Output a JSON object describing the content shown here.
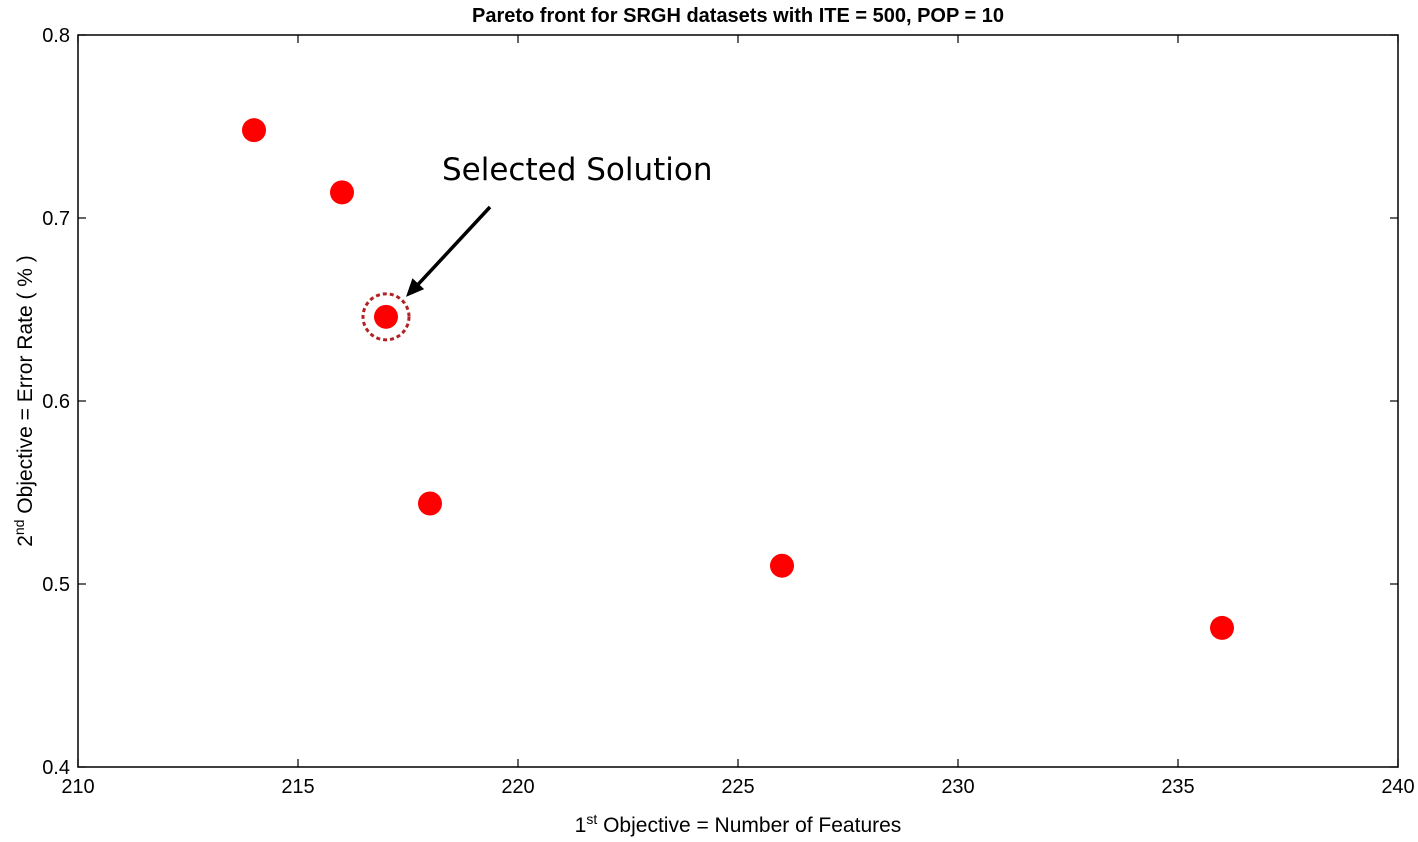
{
  "chart_data": {
    "type": "scatter",
    "title": "Pareto front for SRGH datasets with ITE = 500, POP = 10",
    "xlabel": {
      "sup": "st",
      "prefix": "1",
      "rest": " Objective = Number of Features"
    },
    "ylabel": {
      "sup": "nd",
      "prefix": "2",
      "rest": " Objective = Error Rate ( % )"
    },
    "xlim": [
      210,
      240
    ],
    "ylim": [
      0.4,
      0.8
    ],
    "xticks": [
      "210",
      "215",
      "220",
      "225",
      "230",
      "235",
      "240"
    ],
    "yticks": [
      "0.4",
      "0.5",
      "0.6",
      "0.7",
      "0.8"
    ],
    "grid": false,
    "marker_color": "#ff0000",
    "highlight_color": "#b22222",
    "points": [
      {
        "x": 214,
        "y": 0.748
      },
      {
        "x": 216,
        "y": 0.714
      },
      {
        "x": 217,
        "y": 0.646,
        "selected": true
      },
      {
        "x": 218,
        "y": 0.544
      },
      {
        "x": 226,
        "y": 0.51
      },
      {
        "x": 236,
        "y": 0.476
      }
    ],
    "annotation": {
      "text": "Selected Solution",
      "target_x": 217,
      "target_y": 0.646
    }
  }
}
